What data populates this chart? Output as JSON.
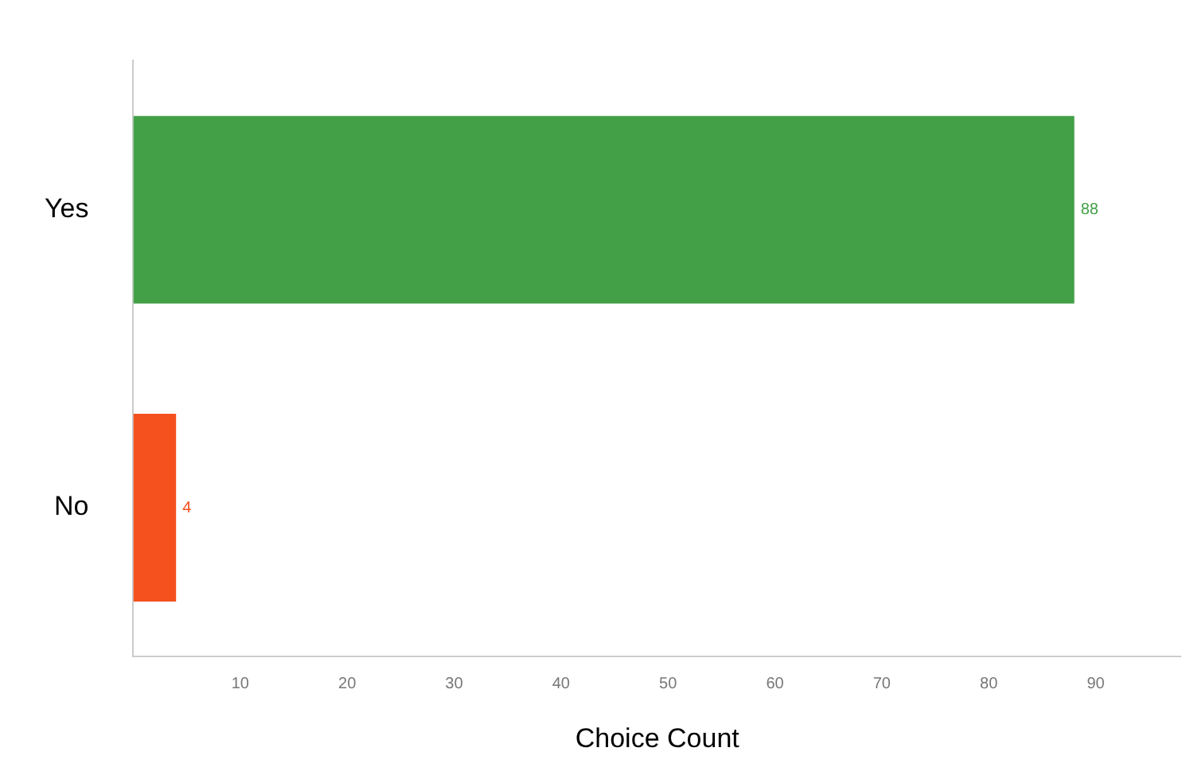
{
  "chart_data": {
    "type": "bar",
    "orientation": "horizontal",
    "categories": [
      "Yes",
      "No"
    ],
    "values": [
      88,
      4
    ],
    "colors": [
      "#43a047",
      "#f4511e"
    ],
    "xlabel": "Choice Count",
    "xlim": [
      0,
      98
    ],
    "xticks": [
      10,
      20,
      30,
      40,
      50,
      60,
      70,
      80,
      90
    ],
    "grid": false,
    "data_labels": true
  }
}
